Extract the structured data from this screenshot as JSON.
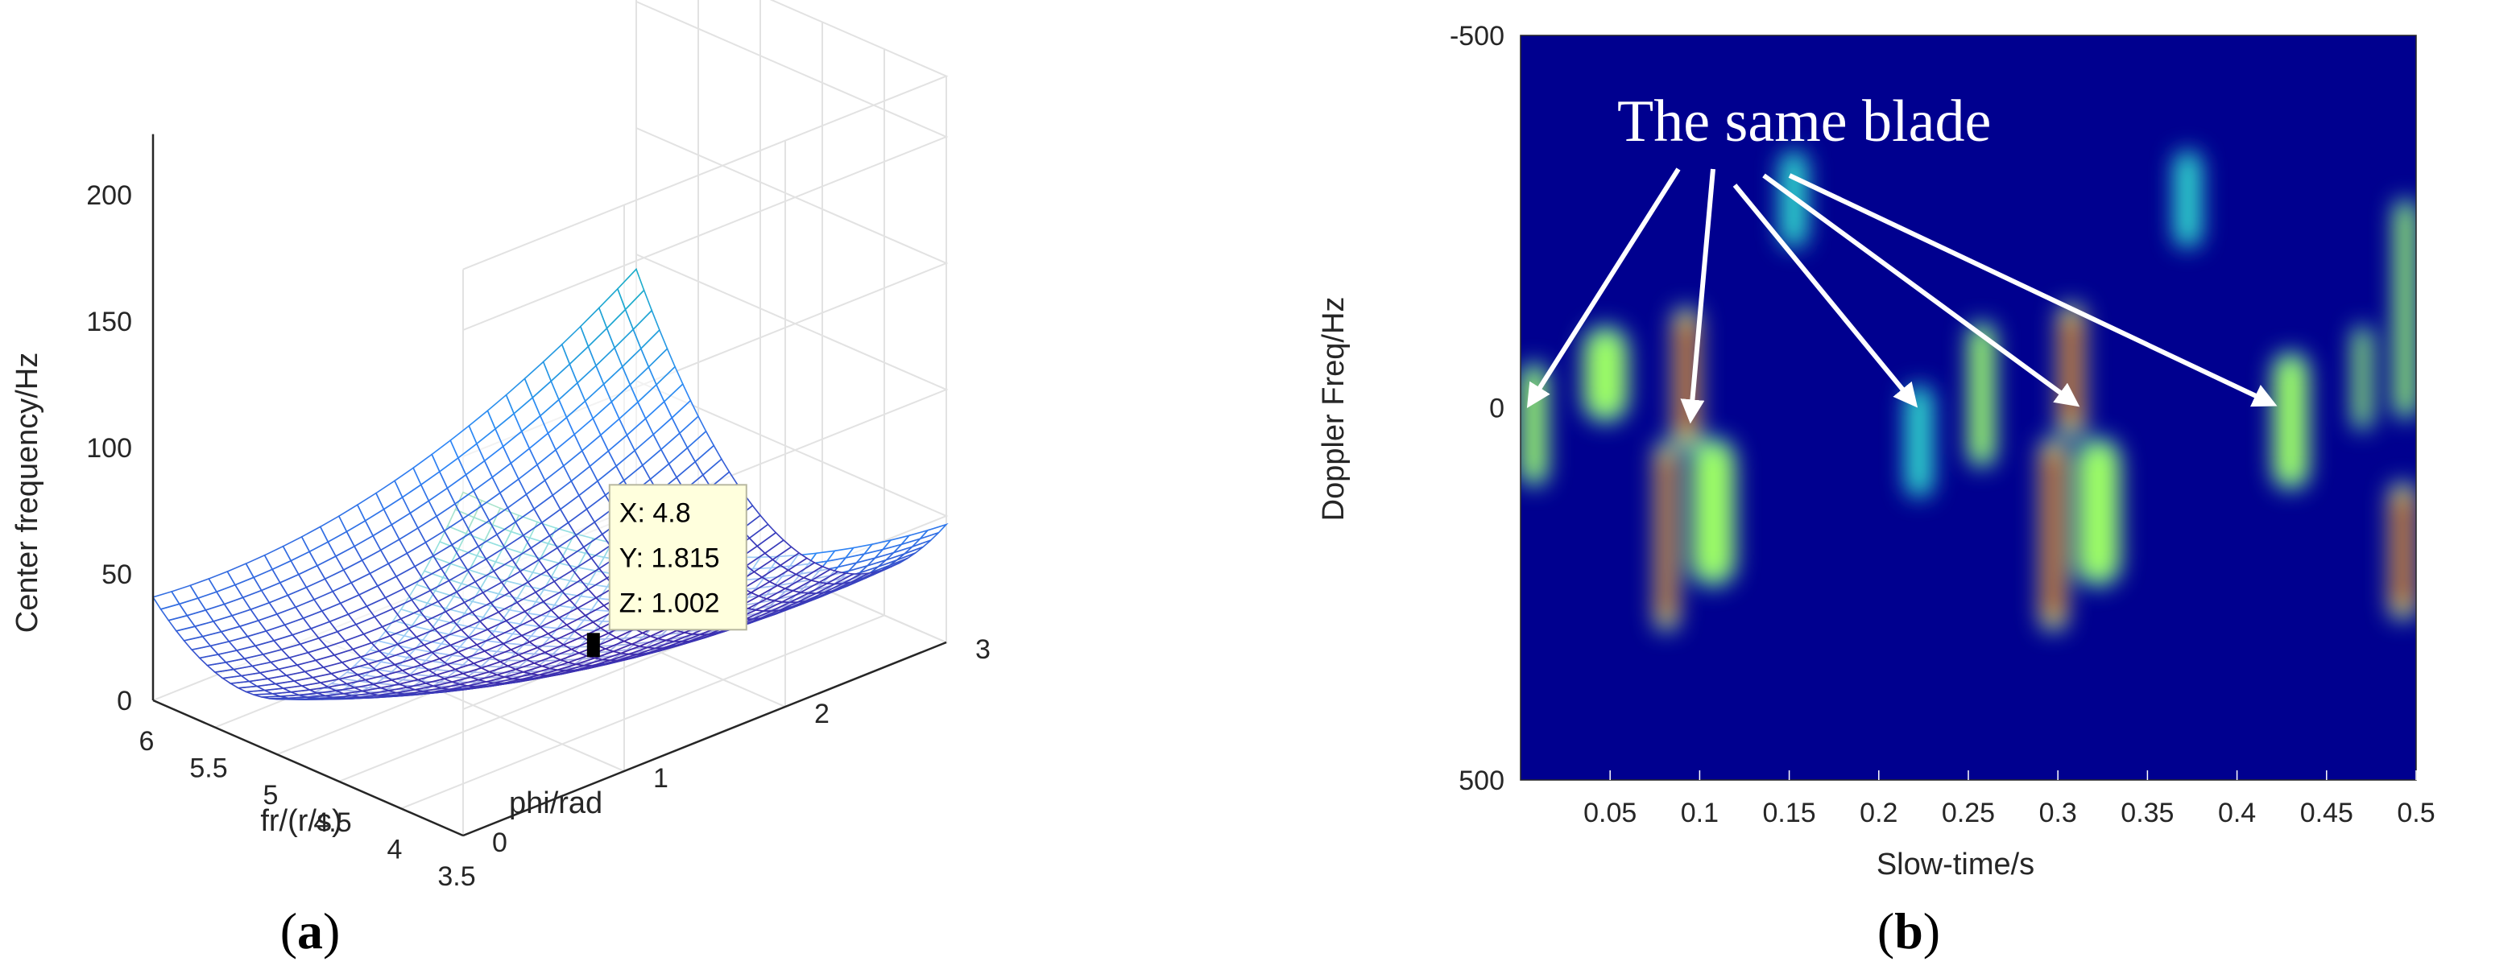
{
  "chart_data": [
    {
      "type": "surface3d",
      "panel_label": "a",
      "xlabel": "fr/(r/s)",
      "ylabel": "phi/rad",
      "zlabel": "Center frequency/Hz",
      "x_ticks": [
        "6",
        "5.5",
        "5",
        "4.5",
        "4",
        "3.5"
      ],
      "y_ticks": [
        "0",
        "1",
        "2",
        "3"
      ],
      "z_ticks": [
        "0",
        "50",
        "100",
        "150",
        "200"
      ],
      "xlim": [
        3.5,
        6
      ],
      "ylim": [
        0,
        3
      ],
      "zlim": [
        0,
        200
      ],
      "colormap": "parula",
      "grid": true,
      "datatip": {
        "lines": [
          "X: 4.8",
          "Y: 1.815",
          "Z: 1.002"
        ],
        "x": 4.8,
        "y": 1.815,
        "z": 1.002
      }
    },
    {
      "type": "heatmap",
      "panel_label": "b",
      "xlabel": "Slow-time/s",
      "ylabel": "Doppler Freq/Hz",
      "x_ticks": [
        "0.05",
        "0.1",
        "0.15",
        "0.2",
        "0.25",
        "0.3",
        "0.35",
        "0.4",
        "0.45",
        "0.5"
      ],
      "y_ticks": [
        "-500",
        "0",
        "500"
      ],
      "xlim": [
        0,
        0.5
      ],
      "ylim": [
        -500,
        500
      ],
      "colormap": "jet",
      "annotation": "The same blade",
      "arrow_targets": [
        {
          "t": 0.005,
          "f": -5
        },
        {
          "t": 0.095,
          "f": 15
        },
        {
          "t": 0.22,
          "f": -5
        },
        {
          "t": 0.31,
          "f": -5
        },
        {
          "t": 0.42,
          "f": -5
        }
      ],
      "blobs": [
        {
          "t0": 0.0,
          "t1": 0.015,
          "f0": -60,
          "f1": 105,
          "peak": 0.45
        },
        {
          "t0": 0.035,
          "t1": 0.06,
          "f0": -110,
          "f1": 20,
          "peak": 0.4
        },
        {
          "t0": 0.085,
          "t1": 0.1,
          "f0": -135,
          "f1": 55,
          "peak": 1.0
        },
        {
          "t0": 0.075,
          "t1": 0.088,
          "f0": 45,
          "f1": 300,
          "peak": 1.0
        },
        {
          "t0": 0.095,
          "t1": 0.12,
          "f0": 40,
          "f1": 240,
          "peak": 0.4
        },
        {
          "t0": 0.145,
          "t1": 0.16,
          "f0": -345,
          "f1": -215,
          "peak": 0.3
        },
        {
          "t0": 0.215,
          "t1": 0.23,
          "f0": -30,
          "f1": 120,
          "peak": 0.35
        },
        {
          "t0": 0.195,
          "t1": 0.205,
          "f0": -390,
          "f1": -270,
          "peak": 0.15
        },
        {
          "t0": 0.25,
          "t1": 0.265,
          "f0": -115,
          "f1": 80,
          "peak": 0.45
        },
        {
          "t0": 0.3,
          "t1": 0.315,
          "f0": -140,
          "f1": 40,
          "peak": 1.0
        },
        {
          "t0": 0.29,
          "t1": 0.305,
          "f0": 40,
          "f1": 300,
          "peak": 1.0
        },
        {
          "t0": 0.31,
          "t1": 0.335,
          "f0": 40,
          "f1": 240,
          "peak": 0.4
        },
        {
          "t0": 0.365,
          "t1": 0.38,
          "f0": -345,
          "f1": -215,
          "peak": 0.3
        },
        {
          "t0": 0.42,
          "t1": 0.44,
          "f0": -75,
          "f1": 110,
          "peak": 0.45
        },
        {
          "t0": 0.4,
          "t1": 0.41,
          "f0": -390,
          "f1": -270,
          "peak": 0.15
        },
        {
          "t0": 0.465,
          "t1": 0.475,
          "f0": -110,
          "f1": 30,
          "peak": 0.4
        },
        {
          "t0": 0.488,
          "t1": 0.5,
          "f0": -280,
          "f1": 15,
          "peak": 0.45
        },
        {
          "t0": 0.485,
          "t1": 0.5,
          "f0": 100,
          "f1": 285,
          "peak": 1.0
        }
      ]
    }
  ],
  "colors": {
    "heatmap_background": "#00008f",
    "axis_text": "#262626",
    "datatip_bg": "#ffffdd",
    "surface_low": "#3e26a8",
    "surface_high": "#f9fb0e"
  }
}
